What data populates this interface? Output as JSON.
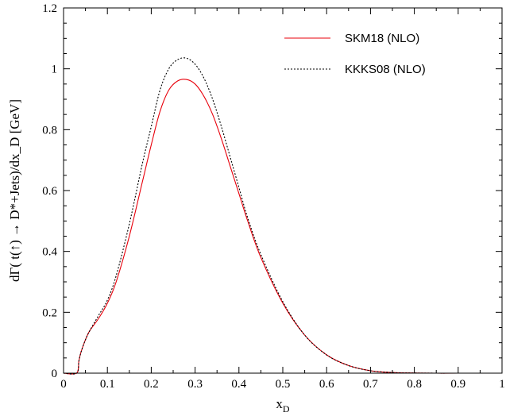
{
  "chart_data": {
    "type": "line",
    "title": "",
    "xlabel": "x",
    "xlabel_sub": "D",
    "ylabel": "dΓ( t(↑) → D*+Jets)/dx_D [GeV]",
    "xlim": [
      0,
      1.0
    ],
    "ylim": [
      0,
      1.2
    ],
    "x_ticks": [
      0,
      0.1,
      0.2,
      0.3,
      0.4,
      0.5,
      0.6,
      0.7,
      0.8,
      0.9,
      1.0
    ],
    "x_tick_labels": [
      "0",
      "0.1",
      "0.2",
      "0.3",
      "0.4",
      "0.5",
      "0.6",
      "0.7",
      "0.8",
      "0.9",
      "1"
    ],
    "y_ticks": [
      0,
      0.2,
      0.4,
      0.6,
      0.8,
      1.0,
      1.2
    ],
    "y_tick_labels": [
      "0",
      "0.2",
      "0.4",
      "0.6",
      "0.8",
      "1",
      "1.2"
    ],
    "grid": false,
    "legend_position": "top-right",
    "series": [
      {
        "name": "SKM18 (NLO)",
        "color": "#e8000b",
        "dash": "solid",
        "x": [
          0.03,
          0.035,
          0.04,
          0.05,
          0.06,
          0.08,
          0.1,
          0.12,
          0.15,
          0.18,
          0.2,
          0.22,
          0.24,
          0.26,
          0.28,
          0.3,
          0.32,
          0.34,
          0.36,
          0.38,
          0.4,
          0.42,
          0.45,
          0.5,
          0.55,
          0.6,
          0.65,
          0.7,
          0.75,
          0.8,
          0.85,
          0.9,
          1.0
        ],
        "y": [
          0.0,
          0.04,
          0.07,
          0.11,
          0.14,
          0.18,
          0.23,
          0.3,
          0.45,
          0.63,
          0.75,
          0.86,
          0.93,
          0.96,
          0.965,
          0.95,
          0.91,
          0.85,
          0.77,
          0.68,
          0.59,
          0.5,
          0.38,
          0.23,
          0.125,
          0.06,
          0.025,
          0.008,
          0.002,
          0.0005,
          0.0,
          0.0,
          0.0
        ]
      },
      {
        "name": "KKKS08 (NLO)",
        "color": "#000000",
        "dash": "dotted",
        "x": [
          0.03,
          0.035,
          0.04,
          0.05,
          0.06,
          0.08,
          0.1,
          0.12,
          0.15,
          0.18,
          0.2,
          0.22,
          0.24,
          0.26,
          0.28,
          0.3,
          0.32,
          0.34,
          0.36,
          0.38,
          0.4,
          0.42,
          0.45,
          0.5,
          0.55,
          0.6,
          0.65,
          0.7,
          0.75,
          0.8,
          0.85,
          0.9,
          1.0
        ],
        "y": [
          0.0,
          0.04,
          0.07,
          0.11,
          0.14,
          0.19,
          0.24,
          0.32,
          0.49,
          0.69,
          0.81,
          0.93,
          1.0,
          1.03,
          1.035,
          1.015,
          0.97,
          0.9,
          0.81,
          0.71,
          0.61,
          0.51,
          0.39,
          0.235,
          0.125,
          0.06,
          0.025,
          0.008,
          0.002,
          0.0005,
          0.0,
          0.0,
          0.0
        ]
      }
    ]
  }
}
